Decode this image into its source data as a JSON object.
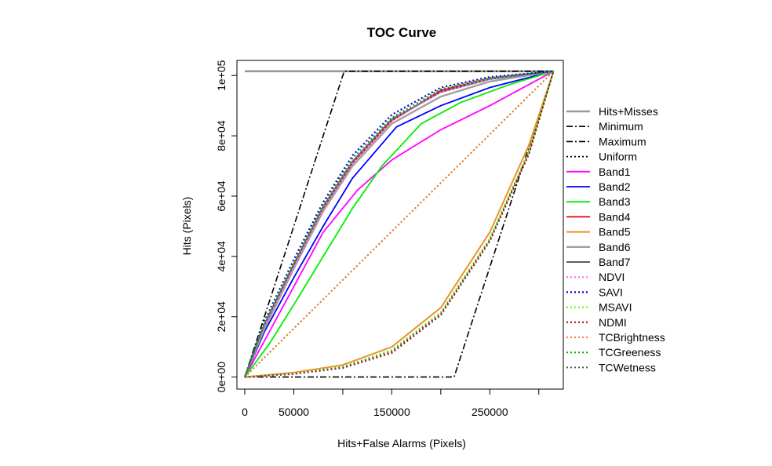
{
  "chart_data": {
    "type": "line",
    "title": "TOC Curve",
    "xlabel": "Hits+False Alarms (Pixels)",
    "ylabel": "Hits (Pixels)",
    "xlim": [
      -8000,
      325000
    ],
    "ylim": [
      -4000,
      105000
    ],
    "xticks": [
      {
        "value": 0,
        "label": "0"
      },
      {
        "value": 50000,
        "label": "50000"
      },
      {
        "value": 100000,
        "label": ""
      },
      {
        "value": 150000,
        "label": "150000"
      },
      {
        "value": 200000,
        "label": ""
      },
      {
        "value": 250000,
        "label": "250000"
      },
      {
        "value": 300000,
        "label": ""
      }
    ],
    "yticks": [
      {
        "value": 0,
        "label": "0e+00"
      },
      {
        "value": 20000,
        "label": "2e+04"
      },
      {
        "value": 40000,
        "label": "4e+04"
      },
      {
        "value": 60000,
        "label": "6e+04"
      },
      {
        "value": 80000,
        "label": "8e+04"
      },
      {
        "value": 100000,
        "label": "1e+05"
      }
    ],
    "legend_position": "right",
    "series": [
      {
        "name": "Hits+Misses",
        "color": "#999999",
        "dash": "solid",
        "width": 2.6,
        "x": [
          0,
          315000
        ],
        "y": [
          101400,
          101400
        ]
      },
      {
        "name": "Minimum",
        "color": "#000000",
        "dash": "dashdot",
        "width": 1.6,
        "x": [
          0,
          213600,
          315000
        ],
        "y": [
          0,
          0,
          101400
        ]
      },
      {
        "name": "Maximum",
        "color": "#000000",
        "dash": "dashdot",
        "width": 1.6,
        "x": [
          0,
          101400,
          315000
        ],
        "y": [
          0,
          101400,
          101400
        ]
      },
      {
        "name": "Uniform",
        "color": "#000000",
        "dash": "dotted",
        "width": 1.8,
        "x": [
          0,
          315000
        ],
        "y": [
          0,
          101400
        ]
      },
      {
        "name": "Band1",
        "color": "#ff00ff",
        "dash": "solid",
        "width": 1.8,
        "x": [
          0,
          20000,
          50000,
          80000,
          115000,
          150000,
          200000,
          250000,
          315000
        ],
        "y": [
          0,
          12000,
          30000,
          48000,
          62000,
          72000,
          82000,
          90000,
          101400
        ]
      },
      {
        "name": "Band2",
        "color": "#0000ff",
        "dash": "solid",
        "width": 1.8,
        "x": [
          0,
          20000,
          50000,
          80000,
          110000,
          155000,
          200000,
          250000,
          315000
        ],
        "y": [
          0,
          15000,
          33000,
          50000,
          66000,
          83000,
          90000,
          96000,
          101400
        ]
      },
      {
        "name": "Band3",
        "color": "#00ee00",
        "dash": "solid",
        "width": 1.8,
        "x": [
          0,
          25000,
          50000,
          80000,
          110000,
          140000,
          180000,
          220000,
          270000,
          315000
        ],
        "y": [
          0,
          11000,
          24000,
          40000,
          56000,
          70000,
          84000,
          91000,
          97000,
          101400
        ]
      },
      {
        "name": "Band4",
        "color": "#dd0000",
        "dash": "solid",
        "width": 1.8,
        "x": [
          0,
          20000,
          50000,
          80000,
          110000,
          150000,
          200000,
          250000,
          315000
        ],
        "y": [
          0,
          17000,
          37000,
          56000,
          71000,
          85000,
          95000,
          99000,
          101400
        ]
      },
      {
        "name": "Band5",
        "color": "#f0902a",
        "dash": "solid",
        "width": 2.0,
        "x": [
          0,
          50000,
          100000,
          150000,
          200000,
          250000,
          290000,
          315000
        ],
        "y": [
          0,
          1500,
          4000,
          10000,
          23000,
          48000,
          77000,
          101400
        ]
      },
      {
        "name": "Band6",
        "color": "#a0a0a0",
        "dash": "solid",
        "width": 2.4,
        "x": [
          0,
          20000,
          50000,
          80000,
          110000,
          150000,
          200000,
          250000,
          315000
        ],
        "y": [
          0,
          16000,
          36000,
          55000,
          70000,
          84000,
          93000,
          98000,
          101400
        ]
      },
      {
        "name": "Band7",
        "color": "#606060",
        "dash": "solid",
        "width": 2.0,
        "x": [
          0,
          20000,
          50000,
          80000,
          110000,
          150000,
          200000,
          250000,
          315000
        ],
        "y": [
          0,
          17500,
          37500,
          56500,
          71500,
          85500,
          94500,
          98800,
          101400
        ]
      },
      {
        "name": "NDVI",
        "color": "#ff66ff",
        "dash": "dotted",
        "width": 2.0,
        "x": [
          0,
          20000,
          50000,
          80000,
          110000,
          150000,
          200000,
          250000,
          315000
        ],
        "y": [
          0,
          17000,
          36500,
          56000,
          71000,
          85000,
          94500,
          99000,
          101400
        ]
      },
      {
        "name": "SAVI",
        "color": "#0000dd",
        "dash": "dotted",
        "width": 2.2,
        "x": [
          0,
          20000,
          50000,
          80000,
          110000,
          150000,
          200000,
          250000,
          315000
        ],
        "y": [
          0,
          18500,
          39000,
          58000,
          73500,
          87000,
          96000,
          99500,
          101400
        ]
      },
      {
        "name": "MSAVI",
        "color": "#55ff00",
        "dash": "dotted",
        "width": 2.0,
        "x": [
          0,
          50000,
          100000,
          150000,
          200000,
          250000,
          290000,
          315000
        ],
        "y": [
          0,
          1200,
          3500,
          9000,
          21500,
          46000,
          75000,
          101400
        ]
      },
      {
        "name": "NDMI",
        "color": "#aa0000",
        "dash": "dotted",
        "width": 2.0,
        "x": [
          0,
          50000,
          100000,
          150000,
          200000,
          250000,
          290000,
          315000
        ],
        "y": [
          0,
          1000,
          3000,
          8000,
          20500,
          45000,
          74000,
          101400
        ]
      },
      {
        "name": "TCBrightness",
        "color": "#f08030",
        "dash": "dotted",
        "width": 2.0,
        "x": [
          0,
          315000
        ],
        "y": [
          0,
          101400
        ]
      },
      {
        "name": "TCGreeness",
        "color": "#00aa00",
        "dash": "dotted",
        "width": 2.0,
        "x": [
          0,
          20000,
          50000,
          80000,
          110000,
          150000,
          200000,
          250000,
          315000
        ],
        "y": [
          0,
          18000,
          38000,
          57000,
          72500,
          86000,
          95500,
          99200,
          101400
        ]
      },
      {
        "name": "TCWetness",
        "color": "#555555",
        "dash": "dotted",
        "width": 2.0,
        "x": [
          0,
          50000,
          100000,
          150000,
          200000,
          250000,
          290000,
          315000
        ],
        "y": [
          0,
          1100,
          3200,
          8500,
          21000,
          45500,
          74500,
          101400
        ]
      }
    ]
  }
}
